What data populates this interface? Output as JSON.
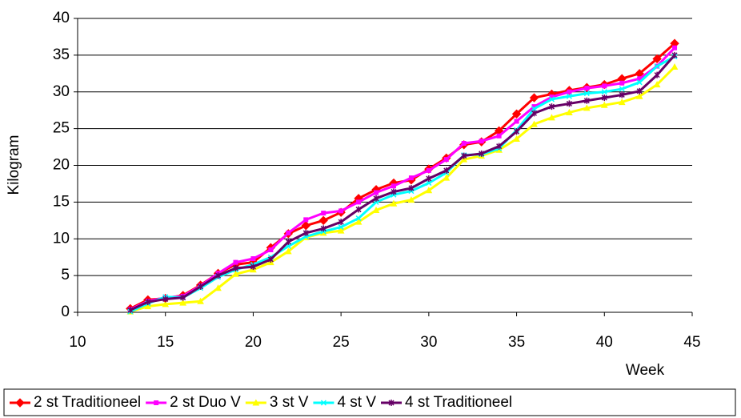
{
  "chart_data": {
    "type": "line",
    "x": [
      13,
      14,
      15,
      16,
      17,
      18,
      19,
      20,
      21,
      22,
      23,
      24,
      25,
      26,
      27,
      28,
      29,
      30,
      31,
      32,
      33,
      34,
      35,
      36,
      37,
      38,
      39,
      40,
      41,
      42,
      43,
      44
    ],
    "xlim": [
      10,
      45
    ],
    "xticks": [
      10,
      15,
      20,
      25,
      30,
      35,
      40,
      45
    ],
    "ylim": [
      0,
      40
    ],
    "yticks": [
      0,
      5,
      10,
      15,
      20,
      25,
      30,
      35,
      40
    ],
    "xlabel": "Week",
    "ylabel": "Kilogram",
    "legend": "bottom",
    "series": [
      {
        "name": "2 st Traditioneel",
        "color": "#ff0000",
        "marker": "diamond",
        "values": [
          0.5,
          1.7,
          1.9,
          2.3,
          3.7,
          5.3,
          6.5,
          6.8,
          8.8,
          10.7,
          11.8,
          12.5,
          13.6,
          15.5,
          16.7,
          17.6,
          18,
          19.5,
          21,
          22.8,
          23.2,
          24.7,
          27,
          29.2,
          29.7,
          30.2,
          30.6,
          31,
          31.8,
          32.5,
          34.5,
          36.6
        ]
      },
      {
        "name": "2 st Duo V",
        "color": "#ff00ff",
        "marker": "square",
        "values": [
          0.4,
          1.5,
          2,
          2.2,
          3.6,
          5.3,
          6.8,
          7.3,
          8.5,
          10.8,
          12.6,
          13.5,
          13.8,
          15,
          16.3,
          17.2,
          18.3,
          19.3,
          20.8,
          23,
          23.3,
          24,
          26,
          28,
          29.3,
          30,
          30.5,
          30.8,
          31.2,
          31.8,
          33.5,
          36
        ]
      },
      {
        "name": "3 st V",
        "color": "#ffff00",
        "marker": "triangle",
        "values": [
          0.1,
          0.8,
          1.1,
          1.3,
          1.5,
          3.3,
          5.2,
          5.8,
          6.8,
          8.3,
          10.2,
          10.8,
          11.1,
          12.3,
          13.9,
          14.8,
          15.3,
          16.6,
          18.3,
          20.8,
          21.3,
          22.1,
          23.6,
          25.6,
          26.5,
          27.2,
          27.8,
          28.2,
          28.6,
          29.4,
          31,
          33.4
        ]
      },
      {
        "name": "4 st V",
        "color": "#00ffff",
        "marker": "x",
        "values": [
          0.1,
          1.2,
          2.1,
          2,
          3.3,
          4.8,
          5.8,
          6.5,
          7.5,
          9,
          10.3,
          11,
          11.6,
          12.8,
          15,
          16,
          16.5,
          17.6,
          19,
          21.4,
          21.5,
          22.3,
          24.8,
          27.7,
          29,
          29.4,
          29.8,
          30,
          30.4,
          31.3,
          33.5,
          34.8
        ]
      },
      {
        "name": "4 st Traditioneel",
        "color": "#660066",
        "marker": "star",
        "values": [
          0.3,
          1.4,
          1.8,
          2,
          3.5,
          5,
          6,
          6.2,
          7.2,
          9.6,
          10.8,
          11.4,
          12.3,
          14,
          15.5,
          16.4,
          16.9,
          18.2,
          19.3,
          21.3,
          21.6,
          22.6,
          24.6,
          27.1,
          28,
          28.4,
          28.8,
          29.2,
          29.6,
          30.1,
          32.3,
          35
        ]
      }
    ]
  }
}
